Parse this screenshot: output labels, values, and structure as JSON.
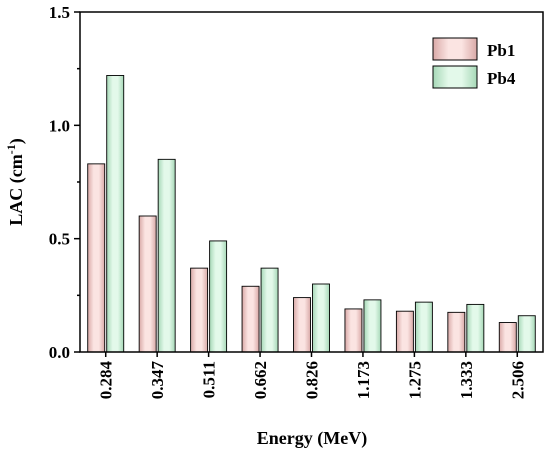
{
  "chart_data": {
    "type": "bar",
    "categories": [
      "0.284",
      "0.347",
      "0.511",
      "0.662",
      "0.826",
      "1.173",
      "1.275",
      "1.333",
      "2.506"
    ],
    "series": [
      {
        "name": "Pb1",
        "values": [
          0.83,
          0.6,
          0.37,
          0.29,
          0.24,
          0.19,
          0.18,
          0.175,
          0.13
        ],
        "color": "#f1c9c8"
      },
      {
        "name": "Pb4",
        "values": [
          1.22,
          0.85,
          0.49,
          0.37,
          0.3,
          0.23,
          0.22,
          0.21,
          0.16
        ],
        "color": "#c4ecd4"
      }
    ],
    "xlabel": "Energy (MeV)",
    "ylabel": {
      "base": "LAC (cm",
      "sup": "-1",
      "tail": ")"
    },
    "ylim": [
      0,
      1.5
    ],
    "yticks": [
      "0.0",
      "0.5",
      "1.0",
      "1.5"
    ],
    "legend": "top-right",
    "grid": false
  }
}
